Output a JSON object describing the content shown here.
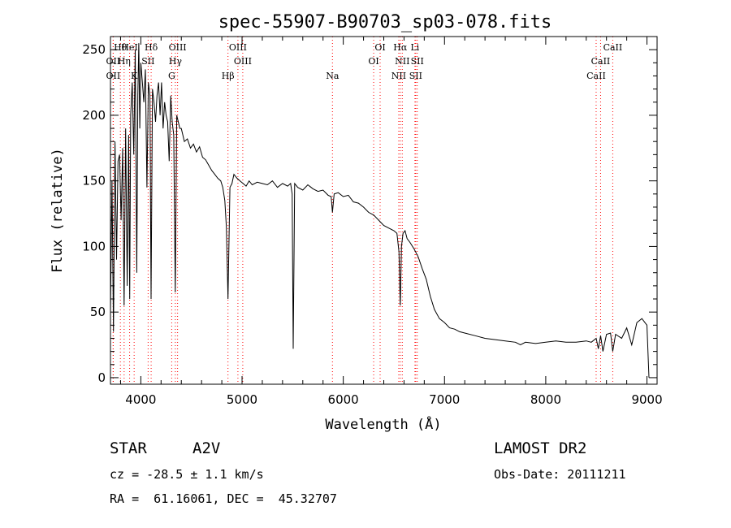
{
  "chart_data": {
    "type": "line",
    "title": "spec-55907-B90703_sp03-078.fits",
    "xlabel": "Wavelength (Å)",
    "ylabel": "Flux (relative)",
    "xlim": [
      3700,
      9100
    ],
    "ylim": [
      -5,
      260
    ],
    "xticks": [
      4000,
      5000,
      6000,
      7000,
      8000,
      9000
    ],
    "yticks": [
      0,
      50,
      100,
      150,
      200,
      250
    ],
    "grid": false,
    "series": [
      {
        "x": [
          3700,
          3715,
          3730,
          3745,
          3760,
          3775,
          3790,
          3805,
          3820,
          3835,
          3850,
          3865,
          3880,
          3890,
          3900,
          3915,
          3930,
          3945,
          3960,
          3970,
          3980,
          3990,
          4000,
          4015,
          4030,
          4045,
          4060,
          4075,
          4090,
          4101,
          4115,
          4130,
          4145,
          4160,
          4175,
          4190,
          4205,
          4220,
          4235,
          4250,
          4265,
          4280,
          4295,
          4310,
          4325,
          4340,
          4355,
          4370,
          4385,
          4400,
          4430,
          4460,
          4490,
          4520,
          4550,
          4580,
          4610,
          4640,
          4670,
          4700,
          4730,
          4760,
          4790,
          4810,
          4830,
          4845,
          4861,
          4880,
          4900,
          4920,
          4950,
          4980,
          5010,
          5040,
          5070,
          5100,
          5150,
          5200,
          5250,
          5300,
          5350,
          5400,
          5450,
          5480,
          5495,
          5505,
          5520,
          5550,
          5600,
          5650,
          5700,
          5750,
          5800,
          5850,
          5880,
          5893,
          5910,
          5950,
          6000,
          6050,
          6100,
          6150,
          6200,
          6250,
          6300,
          6350,
          6400,
          6450,
          6500,
          6530,
          6550,
          6563,
          6575,
          6590,
          6610,
          6630,
          6660,
          6700,
          6740,
          6780,
          6820,
          6860,
          6900,
          6950,
          7000,
          7050,
          7100,
          7150,
          7200,
          7300,
          7400,
          7500,
          7600,
          7700,
          7750,
          7800,
          7900,
          8000,
          8100,
          8200,
          8300,
          8400,
          8450,
          8498,
          8520,
          8542,
          8565,
          8600,
          8640,
          8662,
          8690,
          8750,
          8800,
          8850,
          8900,
          8950,
          9000,
          9020
        ],
        "y": [
          50,
          150,
          35,
          180,
          90,
          165,
          170,
          120,
          175,
          55,
          190,
          70,
          185,
          60,
          200,
          225,
          170,
          250,
          80,
          215,
          255,
          190,
          240,
          225,
          210,
          235,
          145,
          225,
          215,
          60,
          220,
          210,
          195,
          215,
          225,
          200,
          225,
          190,
          210,
          200,
          195,
          165,
          215,
          195,
          185,
          65,
          200,
          195,
          190,
          190,
          180,
          182,
          175,
          178,
          172,
          176,
          168,
          166,
          162,
          158,
          155,
          152,
          150,
          145,
          135,
          115,
          60,
          145,
          148,
          155,
          152,
          150,
          148,
          146,
          150,
          147,
          149,
          148,
          147,
          150,
          145,
          148,
          146,
          148,
          140,
          22,
          148,
          145,
          143,
          147,
          144,
          142,
          143,
          139,
          138,
          126,
          140,
          141,
          138,
          139,
          134,
          133,
          130,
          126,
          124,
          120,
          116,
          114,
          112,
          110,
          96,
          55,
          100,
          110,
          112,
          106,
          103,
          98,
          92,
          83,
          75,
          62,
          52,
          45,
          42,
          38,
          37,
          35,
          34,
          32,
          30,
          29,
          28,
          27,
          25,
          27,
          26,
          27,
          28,
          27,
          27,
          28,
          27,
          30,
          22,
          32,
          20,
          33,
          34,
          20,
          33,
          30,
          38,
          25,
          42,
          45,
          40,
          0
        ]
      }
    ],
    "lines": [
      {
        "name": "Hθ",
        "wl": 3798
      },
      {
        "name": "OII",
        "wl": 3727
      },
      {
        "name": "OII",
        "wl": 3727
      },
      {
        "name": "HeI",
        "wl": 3889
      },
      {
        "name": "Hη",
        "wl": 3835
      },
      {
        "name": "K",
        "wl": 3934
      },
      {
        "name": "Hδ",
        "wl": 4102
      },
      {
        "name": "SII",
        "wl": 4072
      },
      {
        "name": "G",
        "wl": 4305
      },
      {
        "name": "OIII",
        "wl": 4363
      },
      {
        "name": "Hγ",
        "wl": 4341
      },
      {
        "name": "Hβ",
        "wl": 4861
      },
      {
        "name": "OIII",
        "wl": 4959
      },
      {
        "name": "OIII",
        "wl": 5007
      },
      {
        "name": "Na",
        "wl": 5893
      },
      {
        "name": "OI",
        "wl": 6364
      },
      {
        "name": "OI",
        "wl": 6300
      },
      {
        "name": "NII",
        "wl": 6548
      },
      {
        "name": "Li",
        "wl": 6708
      },
      {
        "name": "NII",
        "wl": 6583
      },
      {
        "name": "SII",
        "wl": 6716
      },
      {
        "name": "Hα",
        "wl": 6563
      },
      {
        "name": "SII",
        "wl": 6731
      },
      {
        "name": "CaII",
        "wl": 8498
      },
      {
        "name": "CaII",
        "wl": 8662
      },
      {
        "name": "CaII",
        "wl": 8542
      }
    ],
    "line_marker_color": "#ff0000"
  },
  "info": {
    "object_class": "STAR",
    "subclass": "A2V",
    "survey": "LAMOST DR2",
    "cz": "cz = -28.5 ± 1.1 km/s",
    "obs_date": "Obs-Date: 20111211",
    "coords": "RA =  61.16061, DEC =  45.32707"
  }
}
